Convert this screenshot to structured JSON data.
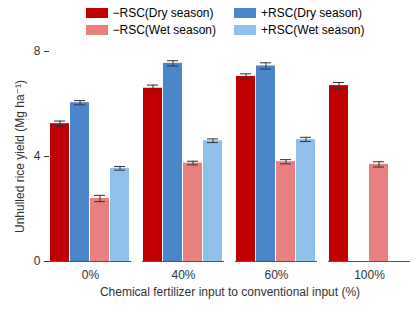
{
  "chart_data": {
    "type": "bar",
    "x_label": "Chemical fertilizer input to conventional input (%)",
    "y_label": "Unhulled rice yield (Mg ha⁻¹)",
    "categories": [
      "0%",
      "40%",
      "60%",
      "100%"
    ],
    "series": [
      {
        "name": "−RSC(Dry season)",
        "color": "#c00000",
        "values": [
          5.25,
          6.6,
          7.05,
          6.7
        ],
        "errors": [
          0.1,
          0.12,
          0.1,
          0.12
        ]
      },
      {
        "name": "+RSC(Dry season)",
        "color": "#4a86c8",
        "values": [
          6.05,
          7.55,
          7.45,
          null
        ],
        "errors": [
          0.08,
          0.1,
          0.12,
          null
        ]
      },
      {
        "name": "−RSC(Wet season)",
        "color": "#e8807f",
        "values": [
          2.4,
          3.75,
          3.8,
          3.7
        ],
        "errors": [
          0.12,
          0.07,
          0.08,
          0.1
        ]
      },
      {
        "name": "+RSC(Wet season)",
        "color": "#8fc1ea",
        "values": [
          3.55,
          4.6,
          4.65,
          null
        ],
        "errors": [
          0.07,
          0.07,
          0.08,
          null
        ]
      }
    ],
    "ylim": [
      0,
      8
    ],
    "yticks": [
      0,
      4,
      8
    ],
    "grid": false,
    "legend": "top"
  }
}
